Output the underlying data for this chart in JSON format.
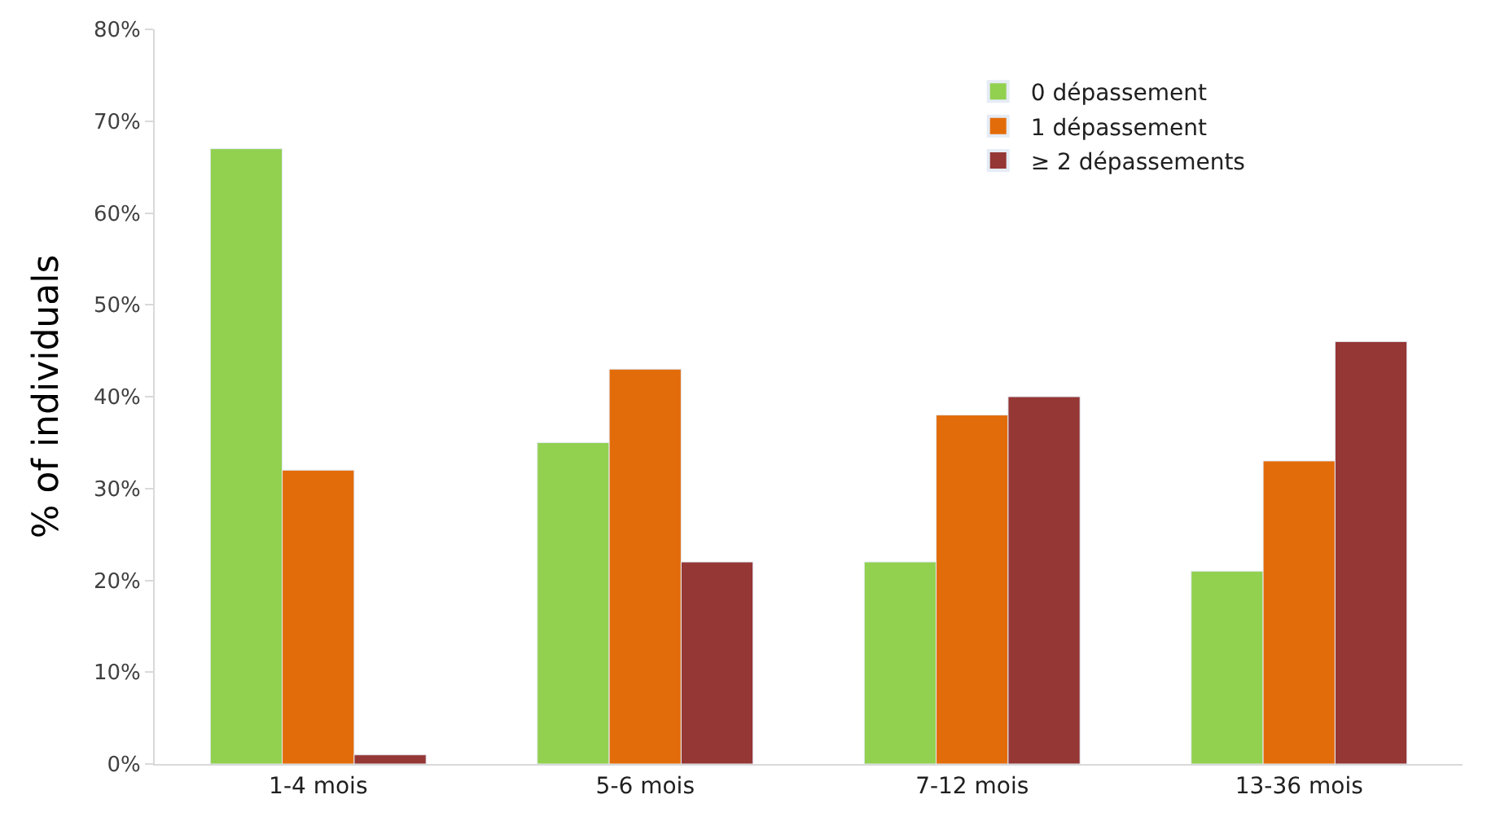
{
  "chart_data": {
    "type": "bar",
    "ylabel": "% of individuals",
    "categories": [
      "1-4 mois",
      "5-6 mois",
      "7-12 mois",
      "13-36 mois"
    ],
    "series": [
      {
        "name": "0 dépassement",
        "color": "#92d050",
        "values": [
          67,
          35,
          22,
          21
        ]
      },
      {
        "name": "1 dépassement",
        "color": "#e36c0a",
        "values": [
          32,
          43,
          38,
          33
        ]
      },
      {
        "name": "≥ 2 dépassements",
        "color": "#953735",
        "values": [
          1,
          22,
          40,
          46
        ]
      }
    ],
    "ylim": [
      0,
      80
    ],
    "yticks": [
      {
        "value": 0,
        "label": "0%"
      },
      {
        "value": 10,
        "label": "10%"
      },
      {
        "value": 20,
        "label": "20%"
      },
      {
        "value": 30,
        "label": "30%"
      },
      {
        "value": 40,
        "label": "40%"
      },
      {
        "value": 50,
        "label": "50%"
      },
      {
        "value": 60,
        "label": "60%"
      },
      {
        "value": 70,
        "label": "70%"
      },
      {
        "value": 80,
        "label": "80%"
      }
    ],
    "legend": "top right"
  }
}
